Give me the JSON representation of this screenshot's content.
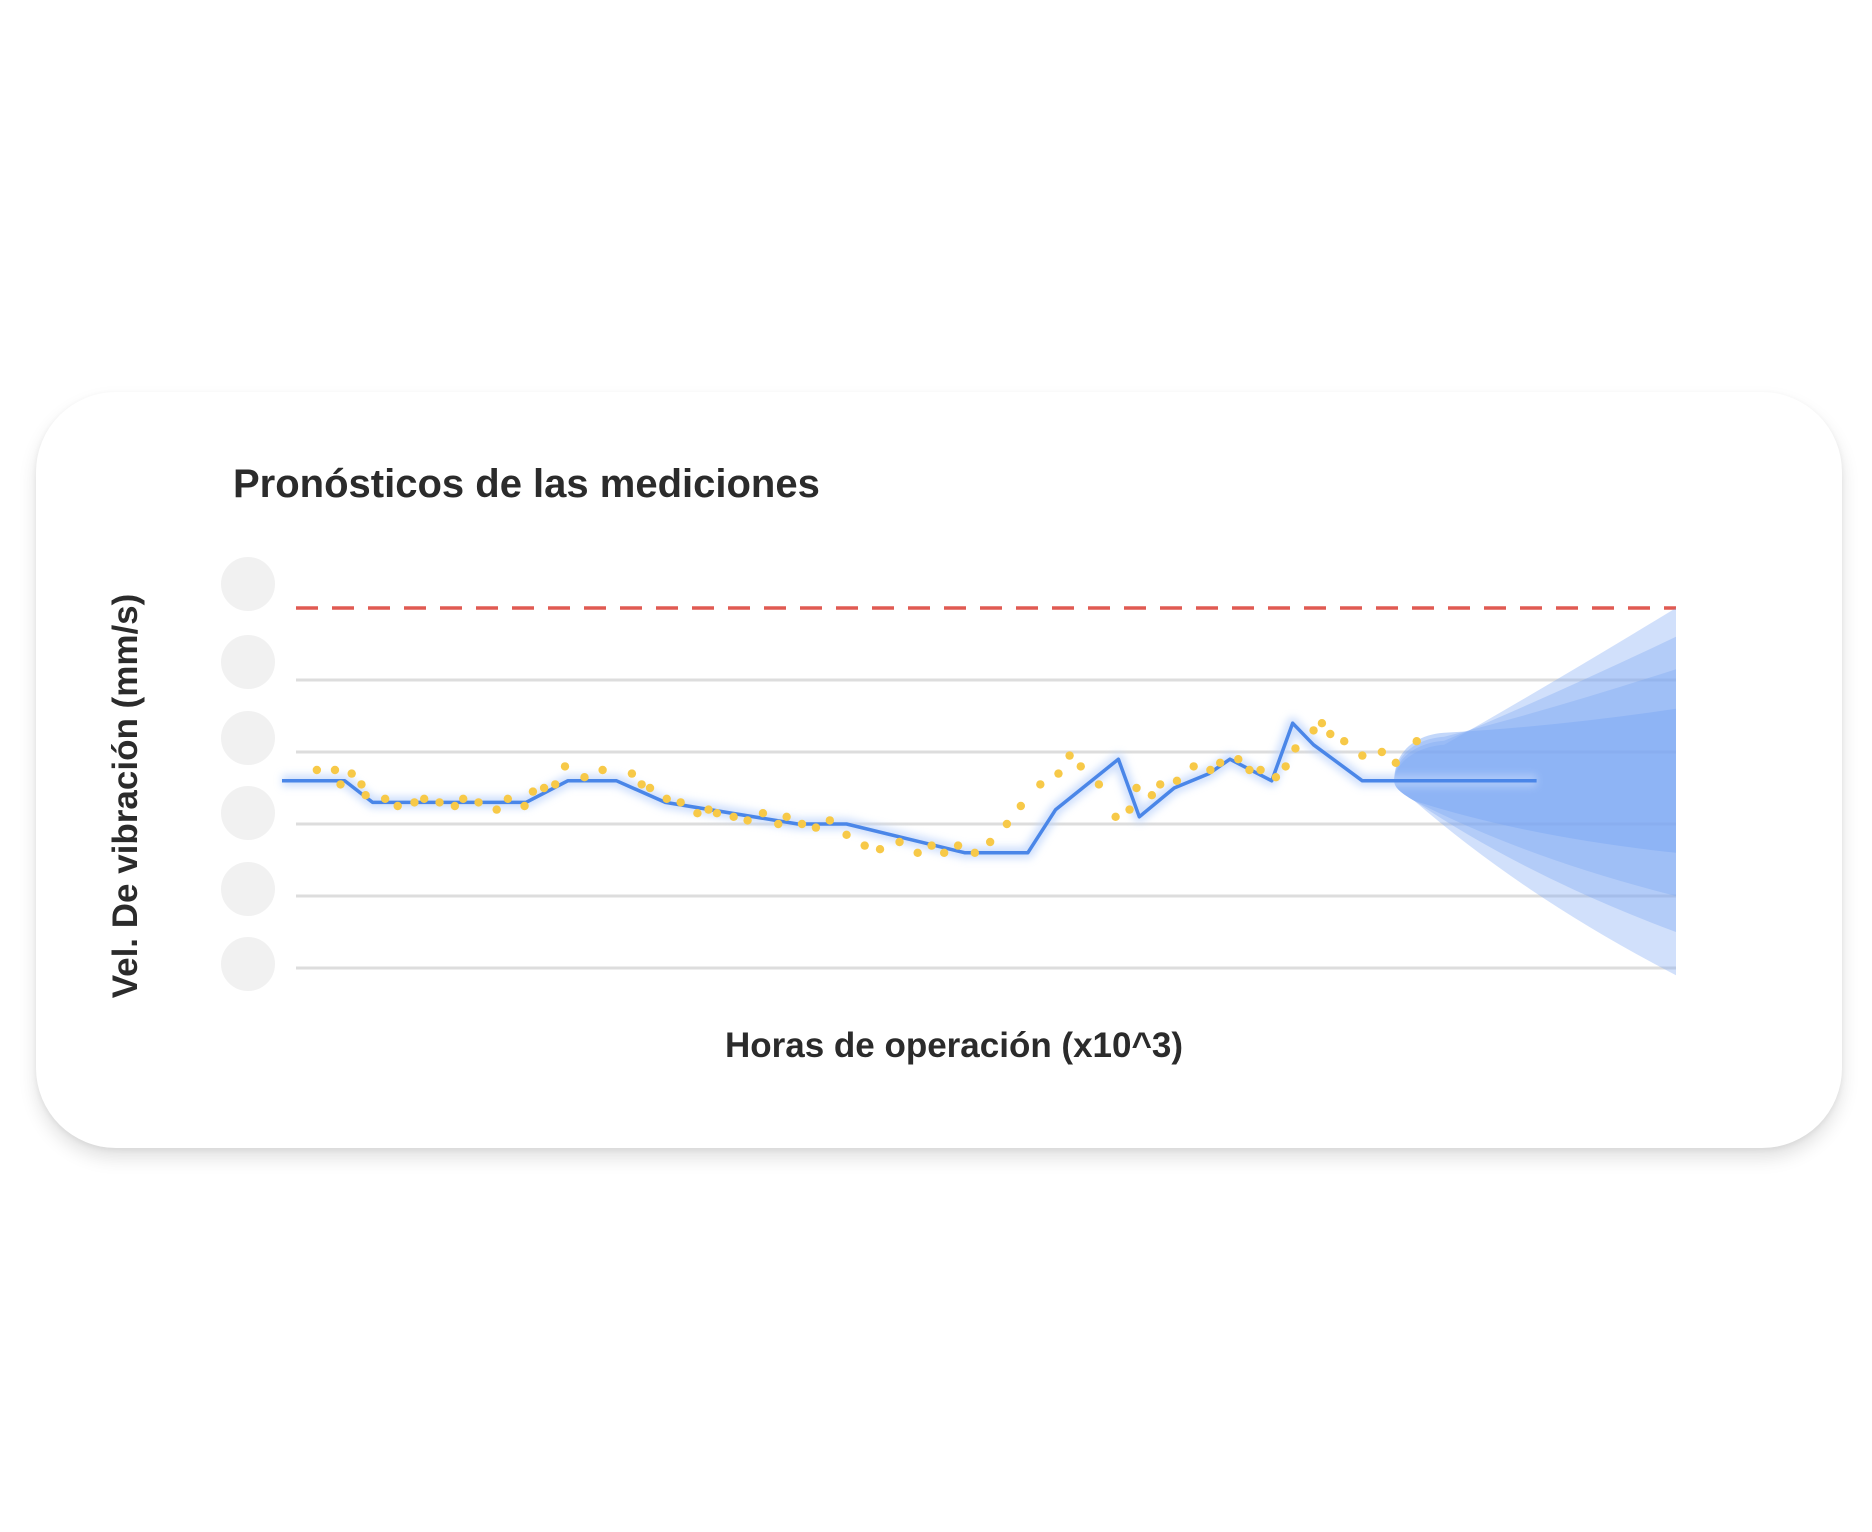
{
  "chart_data": {
    "type": "line",
    "title": "Pronósticos de las mediciones",
    "xlabel": "Horas de operación (x10^3)",
    "ylabel": "Vel. De vibración (mm/s)",
    "xlim": [
      0,
      100
    ],
    "ylim": [
      0,
      5.5
    ],
    "y_gridlines": [
      0,
      1,
      2,
      3,
      4
    ],
    "y_tick_labels_hidden": 6,
    "threshold": {
      "y": 5,
      "style": "dashed",
      "color": "#e05a52"
    },
    "colors": {
      "trend": "#4a86e8",
      "measurements": "#f7c948",
      "forecast_band": "#7aa7f4",
      "gridline": "#dddddd"
    },
    "series": [
      {
        "kind": "trend",
        "x": [
          0,
          4.5,
          6.5,
          17.5,
          20.5,
          24,
          27.5,
          37,
          40.5,
          49,
          51,
          53.5,
          55.5,
          60,
          61.5,
          64,
          66.5,
          68,
          71,
          72.5,
          74,
          77.5,
          81,
          82.5,
          84.5,
          90
        ],
        "y": [
          2.6,
          2.6,
          2.3,
          2.3,
          2.6,
          2.6,
          2.3,
          2.0,
          2.0,
          1.6,
          1.6,
          1.6,
          2.2,
          2.9,
          2.1,
          2.5,
          2.7,
          2.9,
          2.6,
          3.4,
          3.1,
          2.6,
          2.6,
          2.6,
          2.6,
          2.6
        ]
      },
      {
        "kind": "measurements",
        "x": [
          2.5,
          3.8,
          4.2,
          5,
          5.7,
          6,
          7.4,
          8.3,
          9.5,
          10.2,
          11.3,
          12.4,
          13,
          14.1,
          15.4,
          16.2,
          17.4,
          18,
          18.8,
          19.6,
          20.3,
          21.7,
          23,
          25.1,
          25.8,
          26.4,
          27.6,
          28.6,
          29.8,
          30.6,
          31.2,
          32.4,
          33.4,
          34.5,
          35.6,
          36.2,
          37.3,
          38.3,
          39.3,
          40.5,
          41.8,
          42.9,
          44.3,
          45.6,
          46.6,
          47.5,
          48.5,
          49.7,
          50.8,
          52,
          53,
          54.4,
          55.7,
          56.5,
          57.3,
          58.6,
          59.8,
          60.8,
          61.3,
          62.4,
          63,
          64.2,
          65.4,
          66.6,
          67.3,
          68.6,
          69.4,
          70.2,
          71.3,
          72,
          72.7,
          74,
          74.6,
          75.2,
          76.2,
          77.5,
          78.9,
          79.9,
          81.4
        ],
        "y": [
          2.75,
          2.75,
          2.55,
          2.7,
          2.55,
          2.4,
          2.35,
          2.25,
          2.3,
          2.35,
          2.3,
          2.25,
          2.35,
          2.3,
          2.2,
          2.35,
          2.25,
          2.45,
          2.5,
          2.55,
          2.8,
          2.65,
          2.75,
          2.7,
          2.55,
          2.5,
          2.35,
          2.3,
          2.15,
          2.2,
          2.15,
          2.1,
          2.05,
          2.15,
          2.0,
          2.1,
          2.0,
          1.95,
          2.05,
          1.85,
          1.7,
          1.65,
          1.75,
          1.6,
          1.7,
          1.6,
          1.7,
          1.6,
          1.75,
          2.0,
          2.25,
          2.55,
          2.7,
          2.95,
          2.8,
          2.55,
          2.1,
          2.2,
          2.5,
          2.4,
          2.55,
          2.6,
          2.8,
          2.75,
          2.85,
          2.9,
          2.75,
          2.75,
          2.65,
          2.8,
          3.05,
          3.3,
          3.4,
          3.25,
          3.15,
          2.95,
          3.0,
          2.85,
          3.15
        ]
      }
    ],
    "forecast": {
      "x_start": 80.5,
      "x_end": 100,
      "center": 2.6,
      "bands": [
        {
          "upper": 5.0,
          "lower": -0.1
        },
        {
          "upper": 4.6,
          "lower": 0.5
        },
        {
          "upper": 4.15,
          "lower": 1.0
        },
        {
          "upper": 3.6,
          "lower": 1.6
        }
      ]
    }
  }
}
